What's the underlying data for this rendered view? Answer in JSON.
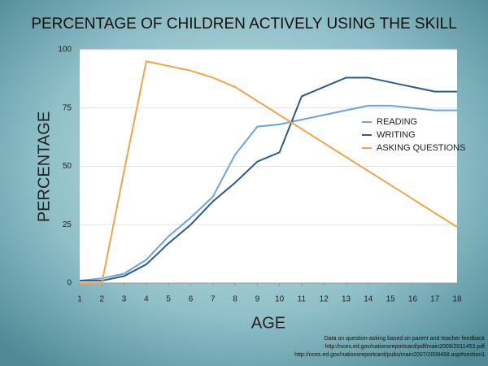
{
  "chart_data": {
    "type": "line",
    "title": "PERCENTAGE OF CHILDREN ACTIVELY USING THE SKILL",
    "x_label": "AGE",
    "y_label": "PERCENTAGE",
    "x": [
      1,
      2,
      3,
      4,
      5,
      6,
      7,
      8,
      9,
      10,
      11,
      12,
      13,
      14,
      15,
      16,
      17,
      18
    ],
    "series": [
      {
        "name": "READING",
        "color": "#6fa3d4",
        "values": [
          1,
          2,
          4,
          10,
          20,
          28,
          37,
          55,
          67,
          68,
          70,
          72,
          74,
          76,
          76,
          75,
          74,
          74
        ]
      },
      {
        "name": "WRITING",
        "color": "#2e5a87",
        "values": [
          1,
          1,
          3,
          8,
          17,
          25,
          35,
          43,
          52,
          56,
          80,
          84,
          88,
          88,
          86,
          84,
          82,
          82
        ]
      },
      {
        "name": "ASKING QUESTIONS",
        "color": "#f0a54a",
        "values": [
          0,
          0,
          48,
          95,
          93,
          91,
          88,
          84,
          78,
          72,
          66,
          60,
          54,
          48,
          42,
          36,
          30,
          24
        ]
      }
    ],
    "xlim": [
      1,
      18
    ],
    "xticks": [
      1,
      2,
      3,
      4,
      5,
      6,
      7,
      8,
      9,
      10,
      11,
      12,
      13,
      14,
      15,
      16,
      17,
      18
    ],
    "ylim": [
      0,
      100
    ],
    "yticks": [
      0,
      25,
      50,
      75,
      100
    ],
    "grid": true,
    "legend": "right",
    "notes": [
      "Data on question-asking based on parent and teacher feedback",
      "http://nces.ed.gov/nationsreportcard/pdf/main2009/2011453.pdf",
      "http://nces.ed.gov/nationsreportcard/pubs/main2007/2008468.asp#section1"
    ]
  }
}
